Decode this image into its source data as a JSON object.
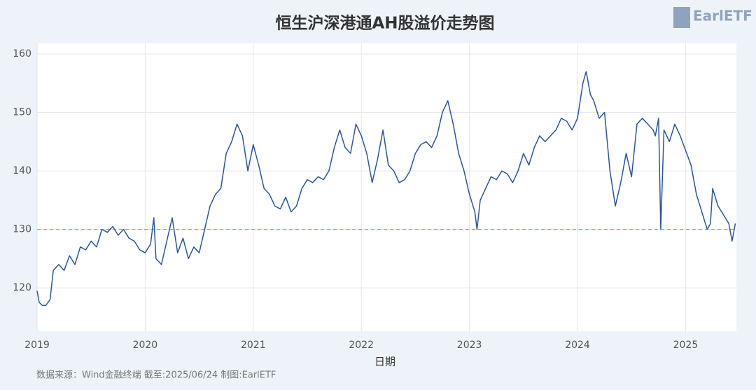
{
  "chart_data": {
    "type": "line",
    "title": "恒生沪深港通AH股溢价走势图",
    "logo": "EarlETF",
    "x_label": "日期",
    "source": "数据来源：Wind金融终端 截至:2025/06/24 制图:EarlETF",
    "x": [
      2019.0,
      2019.02,
      2019.05,
      2019.08,
      2019.12,
      2019.15,
      2019.2,
      2019.25,
      2019.3,
      2019.35,
      2019.4,
      2019.45,
      2019.5,
      2019.55,
      2019.6,
      2019.65,
      2019.7,
      2019.75,
      2019.8,
      2019.85,
      2019.9,
      2019.95,
      2020.0,
      2020.05,
      2020.08,
      2020.1,
      2020.15,
      2020.2,
      2020.25,
      2020.3,
      2020.35,
      2020.4,
      2020.45,
      2020.5,
      2020.55,
      2020.6,
      2020.65,
      2020.7,
      2020.75,
      2020.8,
      2020.85,
      2020.9,
      2020.95,
      2021.0,
      2021.05,
      2021.1,
      2021.15,
      2021.2,
      2021.25,
      2021.3,
      2021.35,
      2021.4,
      2021.45,
      2021.5,
      2021.55,
      2021.6,
      2021.65,
      2021.7,
      2021.75,
      2021.8,
      2021.85,
      2021.9,
      2021.95,
      2022.0,
      2022.05,
      2022.1,
      2022.15,
      2022.2,
      2022.25,
      2022.3,
      2022.35,
      2022.4,
      2022.45,
      2022.5,
      2022.55,
      2022.6,
      2022.65,
      2022.7,
      2022.75,
      2022.8,
      2022.85,
      2022.9,
      2022.95,
      2023.0,
      2023.05,
      2023.07,
      2023.1,
      2023.15,
      2023.2,
      2023.25,
      2023.3,
      2023.35,
      2023.4,
      2023.45,
      2023.5,
      2023.55,
      2023.6,
      2023.65,
      2023.7,
      2023.75,
      2023.8,
      2023.85,
      2023.9,
      2023.95,
      2024.0,
      2024.05,
      2024.08,
      2024.12,
      2024.15,
      2024.2,
      2024.25,
      2024.3,
      2024.35,
      2024.4,
      2024.45,
      2024.5,
      2024.55,
      2024.6,
      2024.65,
      2024.7,
      2024.72,
      2024.75,
      2024.77,
      2024.8,
      2024.85,
      2024.9,
      2024.95,
      2025.0,
      2025.05,
      2025.1,
      2025.15,
      2025.2,
      2025.23,
      2025.25,
      2025.3,
      2025.35,
      2025.4,
      2025.43,
      2025.46
    ],
    "series": [
      {
        "color": "#2a55a0",
        "values": [
          119.5,
          117.5,
          117,
          117,
          118,
          123,
          124,
          123,
          125.5,
          124,
          127,
          126.5,
          128,
          127,
          130,
          129.5,
          130.5,
          129,
          130,
          128.5,
          128,
          126.5,
          126,
          127.5,
          132,
          125,
          124,
          128,
          132,
          126,
          128.5,
          125,
          127,
          126,
          130,
          134,
          136,
          137,
          143,
          145,
          148,
          146,
          140,
          144.5,
          141,
          137,
          136,
          134,
          133.5,
          135.5,
          133,
          134,
          137,
          138.5,
          138,
          139,
          138.5,
          140,
          144,
          147,
          144,
          143,
          148,
          146,
          143,
          138,
          142,
          147,
          141,
          140,
          138,
          138.5,
          140,
          143,
          144.5,
          145,
          144,
          146,
          150,
          152,
          148,
          143,
          140,
          136,
          133,
          130,
          135,
          137,
          139,
          138.5,
          140,
          139.5,
          138,
          140,
          143,
          141,
          144,
          146,
          145,
          146,
          147,
          149,
          148.5,
          147,
          149,
          155,
          157,
          153,
          152,
          149,
          150,
          140,
          134,
          138,
          143,
          139,
          148,
          149,
          148,
          147,
          146,
          149,
          130,
          147,
          145,
          148,
          146,
          143.5,
          141,
          136,
          133,
          130,
          131,
          137,
          134,
          132.5,
          131,
          128,
          131
        ]
      }
    ],
    "xlim": [
      2019,
      2025.47
    ],
    "xticks": [
      2019,
      2020,
      2021,
      2022,
      2023,
      2024,
      2025
    ],
    "ylim": [
      112.6,
      161.8
    ],
    "yticks": [
      120,
      130,
      140,
      150,
      160
    ],
    "reference_line": 130,
    "reference_color": "#f08080",
    "grid": true
  }
}
